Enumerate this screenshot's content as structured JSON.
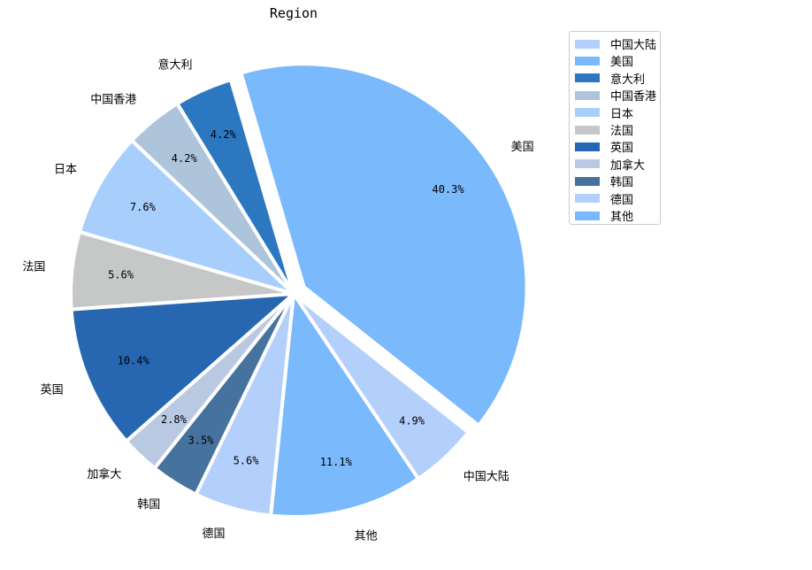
{
  "chart_data": {
    "type": "pie",
    "title": "Region",
    "slices": [
      {
        "label": "中国大陆",
        "value": 4.9,
        "pct_label": "4.9%",
        "color": "#b3d0fc"
      },
      {
        "label": "美国",
        "value": 40.3,
        "pct_label": "40.3%",
        "color": "#79b9fc"
      },
      {
        "label": "意大利",
        "value": 4.2,
        "pct_label": "4.2%",
        "color": "#2c78c0"
      },
      {
        "label": "中国香港",
        "value": 4.2,
        "pct_label": "4.2%",
        "color": "#adc4db"
      },
      {
        "label": "日本",
        "value": 7.6,
        "pct_label": "7.6%",
        "color": "#a8cffc"
      },
      {
        "label": "法国",
        "value": 5.6,
        "pct_label": "5.6%",
        "color": "#c6c8c8"
      },
      {
        "label": "英国",
        "value": 10.4,
        "pct_label": "10.4%",
        "color": "#2767b2"
      },
      {
        "label": "加拿大",
        "value": 2.8,
        "pct_label": "2.8%",
        "color": "#b9c9e2"
      },
      {
        "label": "韩国",
        "value": 3.5,
        "pct_label": "3.5%",
        "color": "#46739d"
      },
      {
        "label": "德国",
        "value": 5.6,
        "pct_label": "5.6%",
        "color": "#b3d0fc"
      },
      {
        "label": "其他",
        "value": 11.1,
        "pct_label": "11.1%",
        "color": "#79b9fc"
      }
    ],
    "exploded": [
      "美国"
    ],
    "legend_position": "top-right"
  }
}
